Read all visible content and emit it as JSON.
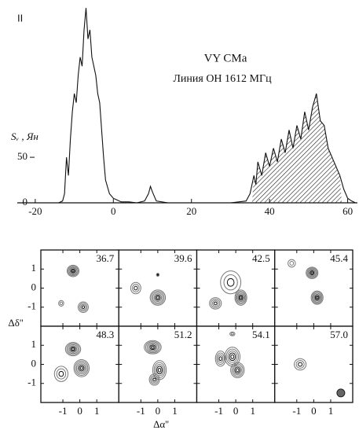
{
  "panel_label": "II",
  "chart_data": {
    "type": "line",
    "title": "VY CMa",
    "subtitle": "Линия OH 1612 МГц",
    "ylabel": "Sᵥ , Ян",
    "x": [
      -24,
      -14,
      -13,
      -12.5,
      -12,
      -11.5,
      -11,
      -10.5,
      -10,
      -9.5,
      -9,
      -8.5,
      -8,
      -7.5,
      -7,
      -6.5,
      -6,
      -5.5,
      -5,
      -4.5,
      -4,
      -3.5,
      -3,
      -2.5,
      -2,
      -1,
      0,
      1,
      2,
      4,
      6,
      8,
      9,
      9.5,
      10,
      11,
      14,
      20,
      30,
      34,
      35,
      36,
      36.5,
      37,
      38,
      39,
      40,
      41,
      42,
      43,
      44,
      45,
      46,
      47,
      48,
      49,
      50,
      51,
      52,
      53,
      54,
      55,
      56,
      57,
      58,
      59,
      60,
      61,
      62
    ],
    "series": [
      {
        "color": "#111",
        "values": [
          0,
          0,
          2,
          10,
          50,
          30,
          70,
          100,
          120,
          110,
          140,
          160,
          150,
          190,
          214,
          180,
          190,
          160,
          150,
          140,
          120,
          110,
          80,
          50,
          25,
          10,
          5,
          3,
          1,
          1,
          0,
          2,
          10,
          18,
          12,
          2,
          0,
          0,
          0,
          2,
          10,
          30,
          20,
          45,
          30,
          55,
          40,
          60,
          45,
          70,
          55,
          80,
          60,
          85,
          70,
          100,
          80,
          105,
          120,
          90,
          85,
          60,
          50,
          40,
          30,
          15,
          5,
          2,
          0
        ]
      }
    ],
    "shaded_range": [
      35.5,
      58.5
    ],
    "xlim": [
      -24.6,
      62.5
    ],
    "ylim": [
      0,
      215
    ],
    "xticks": [
      -20,
      0,
      20,
      40,
      60
    ],
    "yticks": [
      0,
      50
    ]
  },
  "panels": {
    "labels": [
      "36.7",
      "39.6",
      "42.5",
      "45.4",
      "48.3",
      "51.2",
      "54.1",
      "57.0"
    ],
    "xlim": [
      -2.3,
      2.3
    ],
    "ylim": [
      -2,
      2
    ],
    "xticks": [
      -1,
      0,
      1
    ],
    "yticks": [
      1,
      0,
      -1
    ],
    "xlabel": "Δα''",
    "ylabel": "Δδ''"
  }
}
